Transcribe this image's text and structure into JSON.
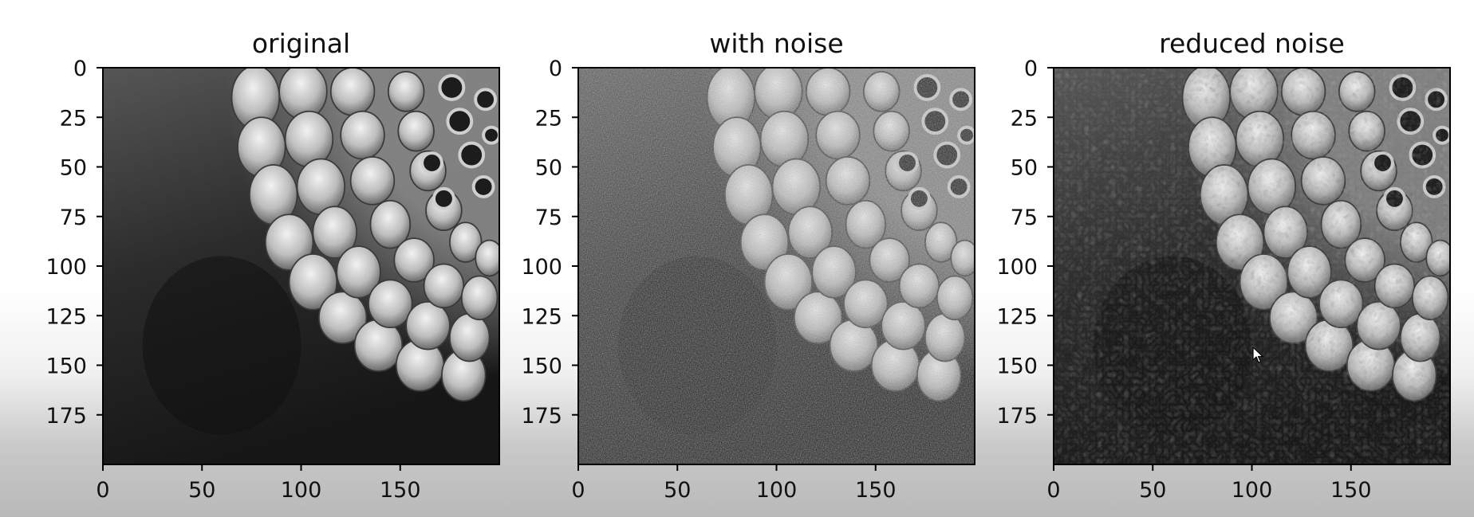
{
  "chart_data": [
    {
      "type": "image",
      "title": "original",
      "xlim": [
        0,
        200
      ],
      "ylim": [
        200,
        0
      ],
      "x_ticks": [
        0,
        50,
        100,
        150
      ],
      "y_ticks": [
        0,
        25,
        50,
        75,
        100,
        125,
        150,
        175
      ],
      "colormap": "gray",
      "content": "original",
      "grid": false
    },
    {
      "type": "image",
      "title": "with noise",
      "xlim": [
        0,
        200
      ],
      "ylim": [
        200,
        0
      ],
      "x_ticks": [
        0,
        50,
        100,
        150
      ],
      "y_ticks": [
        0,
        25,
        50,
        75,
        100,
        125,
        150,
        175
      ],
      "colormap": "gray",
      "content": "noisy",
      "grid": false
    },
    {
      "type": "image",
      "title": "reduced noise",
      "xlim": [
        0,
        200
      ],
      "ylim": [
        200,
        0
      ],
      "x_ticks": [
        0,
        50,
        100,
        150
      ],
      "y_ticks": [
        0,
        25,
        50,
        75,
        100,
        125,
        150,
        175
      ],
      "colormap": "gray",
      "content": "denoised",
      "grid": false
    }
  ],
  "icons": {
    "cursor": "mouse-pointer-icon"
  }
}
